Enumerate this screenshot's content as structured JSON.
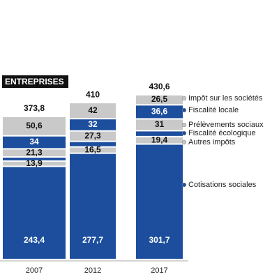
{
  "chart_data": {
    "type": "stacked-bar",
    "title": "ENTREPRISES",
    "categories": [
      "2007",
      "2012",
      "2017"
    ],
    "ylim": [
      0,
      680
    ],
    "totals": [
      373.8,
      410,
      430.6
    ],
    "total_labels": [
      "373,8",
      "410",
      "430,6"
    ],
    "series": [
      {
        "name": "Cotisations sociales",
        "color": "#1c4e9d",
        "values": [
          243.4,
          277.7,
          301.7
        ],
        "value_labels": [
          "243,4",
          "277,7",
          "301,7"
        ]
      },
      {
        "name": "Autres impôts",
        "color": "#c9c9c9",
        "values": [
          13.9,
          16.5,
          19.4
        ],
        "value_labels": [
          "13,9",
          "16,5",
          "19,4"
        ]
      },
      {
        "name": "Fiscalité écologique",
        "color": "#1c4e9d",
        "values": [
          10.6,
          14.5,
          15.4
        ]
      },
      {
        "name": "Prélèvements sociaux",
        "color": "#c9c9c9",
        "values": [
          21.3,
          27.3,
          31
        ],
        "value_labels": [
          "21,3",
          "27,3",
          "31"
        ]
      },
      {
        "name": "Fiscalité locale",
        "color": "#1c4e9d",
        "values": [
          34,
          32,
          36.6
        ],
        "value_labels": [
          "34",
          "32",
          "36,6"
        ]
      },
      {
        "name": "Impôt sur les sociétés",
        "color": "#c9c9c9",
        "values": [
          50.6,
          42,
          26.5
        ],
        "value_labels": [
          "50,6",
          "42",
          "26,5"
        ]
      }
    ]
  }
}
